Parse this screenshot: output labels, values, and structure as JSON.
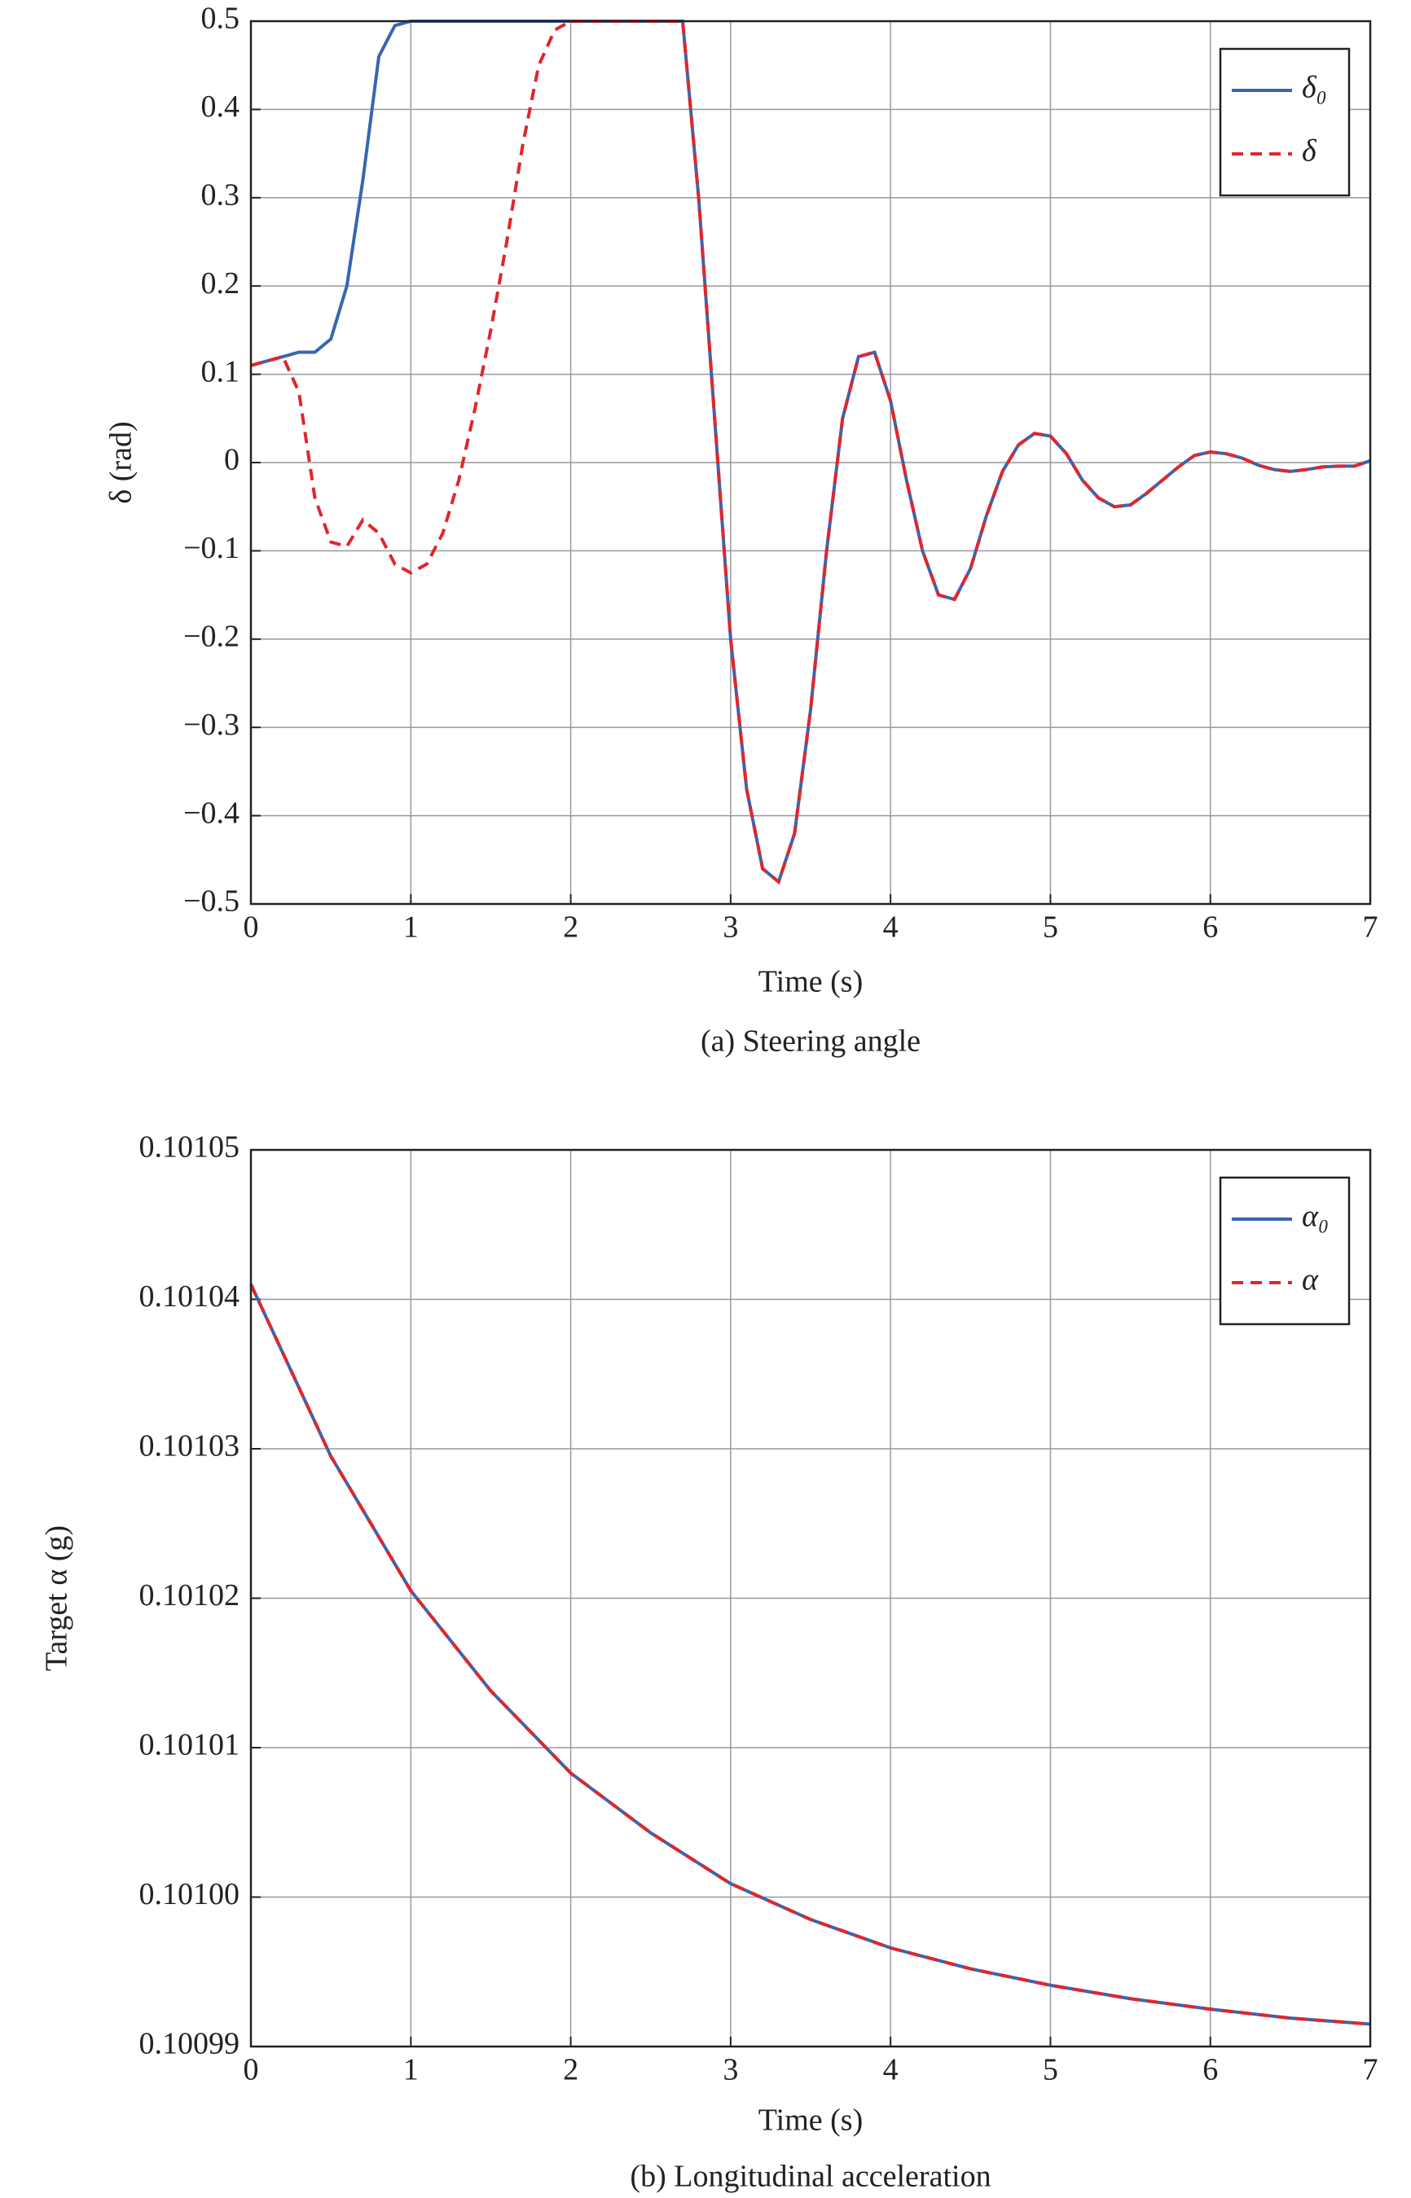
{
  "chart_data": [
    {
      "type": "line",
      "caption": "(a) Steering angle",
      "xlabel": "Time (s)",
      "ylabel": "δ (rad)",
      "x": [
        0,
        0.1,
        0.2,
        0.3,
        0.4,
        0.5,
        0.6,
        0.7,
        0.8,
        0.9,
        1.0,
        1.1,
        1.2,
        1.3,
        1.4,
        1.5,
        1.6,
        1.7,
        1.8,
        1.9,
        2.0,
        2.1,
        2.2,
        2.3,
        2.4,
        2.5,
        2.6,
        2.7,
        2.8,
        2.9,
        3.0,
        3.1,
        3.2,
        3.3,
        3.4,
        3.5,
        3.6,
        3.7,
        3.8,
        3.9,
        4.0,
        4.1,
        4.2,
        4.3,
        4.4,
        4.5,
        4.6,
        4.7,
        4.8,
        4.9,
        5.0,
        5.1,
        5.2,
        5.3,
        5.4,
        5.5,
        5.6,
        5.7,
        5.8,
        5.9,
        6.0,
        6.1,
        6.2,
        6.3,
        6.4,
        6.5,
        6.6,
        6.7,
        6.8,
        6.9,
        7.0
      ],
      "series": [
        {
          "name": "δ₀",
          "color": "#3a65b0",
          "dashed": false,
          "values": [
            0.11,
            0.115,
            0.12,
            0.125,
            0.125,
            0.14,
            0.2,
            0.32,
            0.46,
            0.495,
            0.5,
            0.5,
            0.5,
            0.5,
            0.5,
            0.5,
            0.5,
            0.5,
            0.5,
            0.5,
            0.5,
            0.5,
            0.5,
            0.5,
            0.5,
            0.5,
            0.5,
            0.5,
            0.3,
            0.05,
            -0.2,
            -0.37,
            -0.46,
            -0.475,
            -0.42,
            -0.28,
            -0.1,
            0.05,
            0.12,
            0.125,
            0.07,
            -0.02,
            -0.1,
            -0.15,
            -0.155,
            -0.12,
            -0.06,
            -0.01,
            0.02,
            0.033,
            0.03,
            0.01,
            -0.02,
            -0.04,
            -0.05,
            -0.048,
            -0.035,
            -0.02,
            -0.005,
            0.008,
            0.012,
            0.01,
            0.005,
            -0.003,
            -0.008,
            -0.01,
            -0.008,
            -0.005,
            -0.004,
            -0.004,
            0.002
          ]
        },
        {
          "name": "δ",
          "color": "#e0262d",
          "dashed": true,
          "values": [
            0.11,
            0.115,
            0.12,
            0.08,
            -0.04,
            -0.09,
            -0.095,
            -0.065,
            -0.08,
            -0.115,
            -0.125,
            -0.115,
            -0.08,
            -0.02,
            0.06,
            0.15,
            0.25,
            0.36,
            0.45,
            0.49,
            0.5,
            0.5,
            0.5,
            0.5,
            0.5,
            0.5,
            0.5,
            0.5,
            0.3,
            0.05,
            -0.2,
            -0.37,
            -0.46,
            -0.475,
            -0.42,
            -0.28,
            -0.1,
            0.05,
            0.12,
            0.125,
            0.07,
            -0.02,
            -0.1,
            -0.15,
            -0.155,
            -0.12,
            -0.06,
            -0.01,
            0.02,
            0.033,
            0.03,
            0.01,
            -0.02,
            -0.04,
            -0.05,
            -0.048,
            -0.035,
            -0.02,
            -0.005,
            0.008,
            0.012,
            0.01,
            0.005,
            -0.003,
            -0.008,
            -0.01,
            -0.008,
            -0.005,
            -0.004,
            -0.004,
            0.002
          ]
        }
      ],
      "xlim": [
        0,
        7
      ],
      "xticks": [
        0,
        1,
        2,
        3,
        4,
        5,
        6,
        7
      ],
      "ylim": [
        -0.5,
        0.5
      ],
      "yticks": [
        {
          "value": -0.5,
          "label": "−0.5"
        },
        {
          "value": -0.4,
          "label": "−0.4"
        },
        {
          "value": -0.3,
          "label": "−0.3"
        },
        {
          "value": -0.2,
          "label": "−0.2"
        },
        {
          "value": -0.1,
          "label": "−0.1"
        },
        0,
        0.1,
        0.2,
        0.3,
        0.4,
        0.5
      ],
      "grid": true,
      "legend": "upper right"
    },
    {
      "type": "line",
      "caption": "(b) Longitudinal acceleration",
      "xlabel": "Time (s)",
      "ylabel": "Target α (g)",
      "x": [
        0,
        0.5,
        1,
        1.5,
        2,
        2.5,
        3,
        3.5,
        4,
        4.5,
        5,
        5.5,
        6,
        6.5,
        7
      ],
      "series": [
        {
          "name": "α₀",
          "color": "#3a65b0",
          "dashed": false,
          "values": [
            0.101041,
            0.1010295,
            0.1010205,
            0.1010138,
            0.1010083,
            0.1010043,
            0.1010009,
            0.1009985,
            0.1009966,
            0.1009952,
            0.1009941,
            0.1009932,
            0.1009925,
            0.1009919,
            0.1009915
          ]
        },
        {
          "name": "α",
          "color": "#e0262d",
          "dashed": true,
          "values": [
            0.101041,
            0.1010295,
            0.1010205,
            0.1010138,
            0.1010083,
            0.1010043,
            0.1010009,
            0.1009985,
            0.1009966,
            0.1009952,
            0.1009941,
            0.1009932,
            0.1009925,
            0.1009919,
            0.1009915
          ]
        }
      ],
      "xlim": [
        0,
        7
      ],
      "xticks": [
        0,
        1,
        2,
        3,
        4,
        5,
        6,
        7
      ],
      "ylim": [
        0.10099,
        0.10105
      ],
      "yticks": [
        0.10099,
        {
          "value": 0.101,
          "label": "0.10100"
        },
        0.10101,
        0.10102,
        0.10103,
        0.10104,
        0.10105
      ],
      "grid": true,
      "legend": "upper right"
    }
  ]
}
